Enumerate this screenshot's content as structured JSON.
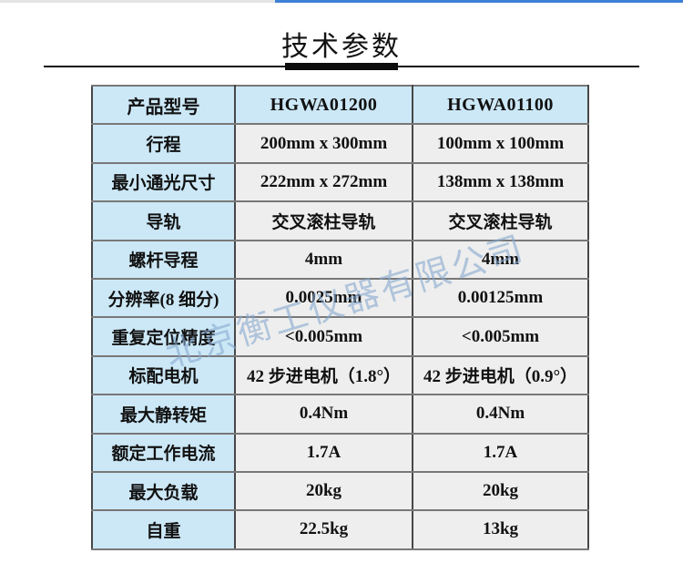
{
  "page": {
    "title": "技术参数"
  },
  "watermark": {
    "text": "北京衡工仪器有限公司"
  },
  "table": {
    "header": {
      "label": "产品型号",
      "models": [
        "HGWA01200",
        "HGWA01100"
      ]
    },
    "rows": [
      {
        "label": "行程",
        "values": [
          "200mm x 300mm",
          "100mm x 100mm"
        ]
      },
      {
        "label": "最小通光尺寸",
        "values": [
          "222mm x 272mm",
          "138mm x 138mm"
        ]
      },
      {
        "label": "导轨",
        "values": [
          "交叉滚柱导轨",
          "交叉滚柱导轨"
        ]
      },
      {
        "label": "螺杆导程",
        "values": [
          "4mm",
          "4mm"
        ]
      },
      {
        "label": "分辨率(8 细分)",
        "values": [
          "0.0025mm",
          "0.00125mm"
        ]
      },
      {
        "label": "重复定位精度",
        "values": [
          "<0.005mm",
          "<0.005mm"
        ]
      },
      {
        "label": "标配电机",
        "values": [
          "42 步进电机（1.8°）",
          "42 步进电机（0.9°）"
        ]
      },
      {
        "label": "最大静转矩",
        "values": [
          "0.4Nm",
          "0.4Nm"
        ]
      },
      {
        "label": "额定工作电流",
        "values": [
          "1.7A",
          "1.7A"
        ]
      },
      {
        "label": "最大负载",
        "values": [
          "20kg",
          "20kg"
        ]
      },
      {
        "label": "自重",
        "values": [
          "22.5kg",
          "13kg"
        ]
      }
    ]
  },
  "colors": {
    "header_cell_bg": "#cce8f7",
    "value_cell_bg": "#eeeeee",
    "border_dark": "#474747",
    "border_light": "#787878",
    "top_bar_blue": "#3f7fd6",
    "top_bar_gray": "#e4e4e4",
    "watermark_color": "rgba(134,168,206,0.6)",
    "title_color": "#121212"
  }
}
